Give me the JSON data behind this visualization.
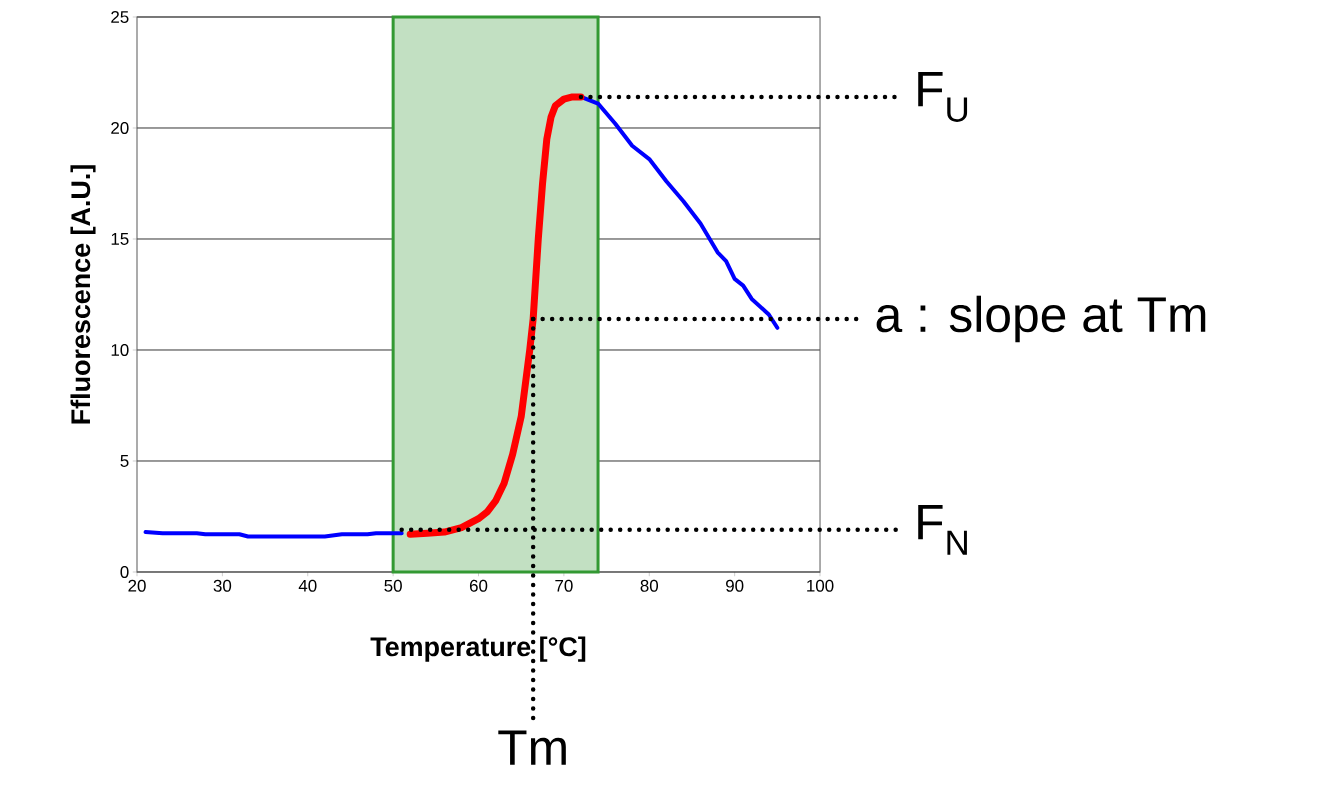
{
  "chart_data": {
    "type": "line",
    "xlabel": "Temperature [°C]",
    "ylabel": "Ffluorescence [A.U.]",
    "xlim": [
      20,
      100
    ],
    "ylim": [
      0,
      25
    ],
    "xticks": [
      20,
      30,
      40,
      50,
      60,
      70,
      80,
      90,
      100
    ],
    "yticks": [
      0,
      5,
      10,
      15,
      20,
      25
    ],
    "grid": "y",
    "line_style": "solid",
    "series": [
      {
        "color": "#0000ff",
        "x": [
          21,
          23,
          27,
          28,
          32,
          33,
          42,
          44,
          47,
          48,
          51,
          60,
          72,
          74,
          76,
          78,
          80,
          82,
          84,
          86,
          88,
          89,
          90,
          91,
          92,
          94,
          95
        ],
        "values": [
          1.8,
          1.75,
          1.75,
          1.7,
          1.7,
          1.6,
          1.6,
          1.7,
          1.7,
          1.75,
          1.75,
          null,
          21.4,
          21.1,
          20.2,
          19.2,
          18.6,
          17.6,
          16.7,
          15.7,
          14.4,
          14.0,
          13.2,
          12.9,
          12.3,
          11.6,
          11.0
        ]
      },
      {
        "color": "#ff0000",
        "x": [
          52,
          54,
          56,
          58,
          60,
          61,
          62,
          63,
          64,
          65,
          66,
          66.4,
          67,
          67.5,
          68,
          68.5,
          69,
          70,
          71,
          72
        ],
        "values": [
          1.7,
          1.75,
          1.8,
          2.0,
          2.4,
          2.7,
          3.2,
          4.0,
          5.3,
          7.0,
          10.0,
          11.4,
          15.0,
          17.5,
          19.5,
          20.5,
          21.0,
          21.3,
          21.4,
          21.4
        ]
      }
    ],
    "bands": [
      {
        "axis": "x",
        "from": 50,
        "to": 74,
        "color": "#339933"
      }
    ],
    "annotations": [
      {
        "text": "F$_{U}$",
        "x": 72,
        "y": 21.4
      },
      {
        "text": "a : slope at Tm",
        "x": 66.4,
        "y": 11.4
      },
      {
        "text": "F$_{N}$",
        "x": 51,
        "y": 1.9
      },
      {
        "text": "Tm",
        "x": 66.4,
        "y": 11.4
      }
    ]
  }
}
